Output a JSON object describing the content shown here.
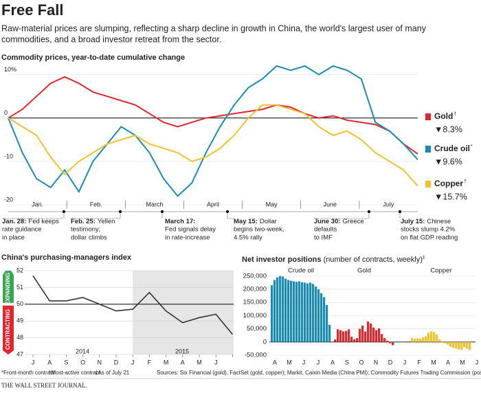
{
  "header": {
    "title": "Free Fall",
    "subtitle_lines": [
      "Raw-material prices are slumping, reflecting a sharp decline in growth in China, the world's largest user of many",
      "commodities, and a broad investor retreat from the sector."
    ]
  },
  "chart_data": [
    {
      "type": "line",
      "title": "Commodity prices, year-to-date cumulative change",
      "months": [
        "Jan.",
        "Feb.",
        "March",
        "April",
        "May",
        "June",
        "July"
      ],
      "ylim": [
        -20,
        12
      ],
      "yticks": [
        {
          "value": 10,
          "label": "10%"
        },
        0,
        -10,
        -20
      ],
      "series": [
        {
          "name": "Gold",
          "note_mark": "†",
          "color": "#e0262f",
          "end_label": "▼8.3%",
          "values": [
            0,
            2,
            5,
            8,
            9.5,
            8,
            6,
            5,
            4,
            3,
            1,
            -1,
            -2,
            -1,
            0,
            0.5,
            1,
            1.5,
            2,
            3,
            2.5,
            1,
            0,
            0.5,
            -0.5,
            -1,
            -1.5,
            -3,
            -6,
            -8.3
          ]
        },
        {
          "name": "Crude oil",
          "note_mark": "*",
          "color": "#1a8ab8",
          "end_label": "▼9.6%",
          "values": [
            0,
            -8,
            -14,
            -16,
            -12,
            -17,
            -10,
            -6,
            -2,
            -4,
            -8,
            -14,
            -18,
            -15,
            -8,
            -2,
            3,
            7,
            9,
            12,
            11,
            12,
            10,
            12,
            11,
            9,
            -1,
            -3,
            -6,
            -9.6
          ]
        },
        {
          "name": "Copper",
          "note_mark": "†",
          "color": "#f2c12e",
          "end_label": "▼15.7%",
          "values": [
            0,
            -2,
            -4,
            -9,
            -13,
            -10,
            -8,
            -6,
            -5,
            -4,
            -6,
            -7,
            -8,
            -10,
            -9,
            -7,
            -4,
            0,
            3,
            3,
            2,
            1,
            -2,
            -4,
            -3,
            -5,
            -8,
            -10,
            -12,
            -15.7
          ]
        }
      ],
      "annotations": [
        {
          "date": "Jan. 28:",
          "lines": [
            "Fed keeps",
            "rate guidance",
            "in place"
          ]
        },
        {
          "date": "Feb. 25:",
          "lines": [
            "Yellen",
            "testimony;",
            "dollar climbs"
          ]
        },
        {
          "date": "March 17:",
          "lines": [
            "",
            "Fed signals delay",
            "in rate-increase"
          ]
        },
        {
          "date": "May 15:",
          "lines": [
            "Dollar",
            "begins two-week,",
            "4.5% rally"
          ]
        },
        {
          "date": "June 30:",
          "lines": [
            "Greece",
            "defaults",
            "to IMF"
          ]
        },
        {
          "date": "July 15:",
          "lines": [
            "Chinese",
            "stocks slump 4.2%",
            "on flat GDP reading"
          ]
        }
      ]
    },
    {
      "type": "line",
      "title": "China's purchasing-managers index",
      "categories": [
        "J",
        "A",
        "S",
        "O",
        "N",
        "D",
        "J",
        "F",
        "M",
        "A",
        "M",
        "J",
        null
      ],
      "years": [
        "2014",
        "2015"
      ],
      "values": [
        51.7,
        50.2,
        50.2,
        50.4,
        50.0,
        49.6,
        49.7,
        50.7,
        49.6,
        48.9,
        49.2,
        49.4,
        48.2
      ],
      "color": "#333333",
      "ylim": [
        47,
        52
      ],
      "yticks": [
        52,
        51,
        50,
        49,
        48,
        47
      ],
      "expanding_label": "EXPANDING",
      "contracting_label": "CONTRACTING"
    },
    {
      "type": "bar",
      "title": "Net investor positions",
      "subtitle": " (number of contracts, weekly)",
      "note_mark": "‡",
      "axis_labels": [
        "A",
        "M",
        "J",
        "J",
        "A",
        "S",
        "O",
        "N",
        "D",
        "J",
        "F",
        "M",
        "A",
        "M",
        "J"
      ],
      "ylim": [
        -50000,
        265000
      ],
      "yticks": [
        {
          "value": 250000,
          "label": "250,000"
        },
        {
          "value": 200000,
          "label": "200,000"
        },
        {
          "value": 150000,
          "label": "150,000"
        },
        {
          "value": 100000,
          "label": "100,000"
        },
        {
          "value": 50000,
          "label": "50,000"
        },
        0,
        {
          "value": -50000,
          "label": "-50,000"
        }
      ],
      "series": [
        {
          "name": "Crude oil",
          "color": "#1a8ab8",
          "values": [
            215000,
            235000,
            245000,
            250000,
            248000,
            240000,
            235000,
            232000,
            230000,
            228000,
            230000,
            226000,
            225000,
            222000,
            225000,
            220000,
            210000,
            200000,
            185000,
            170000,
            140000,
            65000
          ]
        },
        {
          "name": "Gold",
          "color": "#e0262f",
          "values": [
            10000,
            48000,
            45000,
            40000,
            42000,
            48000,
            20000,
            10000,
            15000,
            50000,
            62000,
            40000,
            78000,
            70000,
            55000,
            45000,
            52000,
            30000,
            15000,
            5000,
            -5000,
            -12000
          ]
        },
        {
          "name": "Copper",
          "color": "#f2c12e",
          "values": [
            15000,
            12000,
            14000,
            13000,
            18000,
            22000,
            35000,
            40000,
            38000,
            28000,
            10000,
            -2000,
            -5000,
            -10000,
            -18000,
            -22000,
            -25000,
            -28000,
            -30000,
            -20000,
            -25000,
            -30000
          ]
        }
      ]
    }
  ],
  "footer": {
    "notes": [
      "*Front-month contract",
      "†Most-active contract",
      "‡As of July 21"
    ],
    "sources": "Sources: Six Financial (gold); FactSet (gold, copper); Markit, Caixin Media (China PMI); Commodity Futures Trading Commission (positions)",
    "credit": "THE WALL STREET JOURNAL."
  }
}
